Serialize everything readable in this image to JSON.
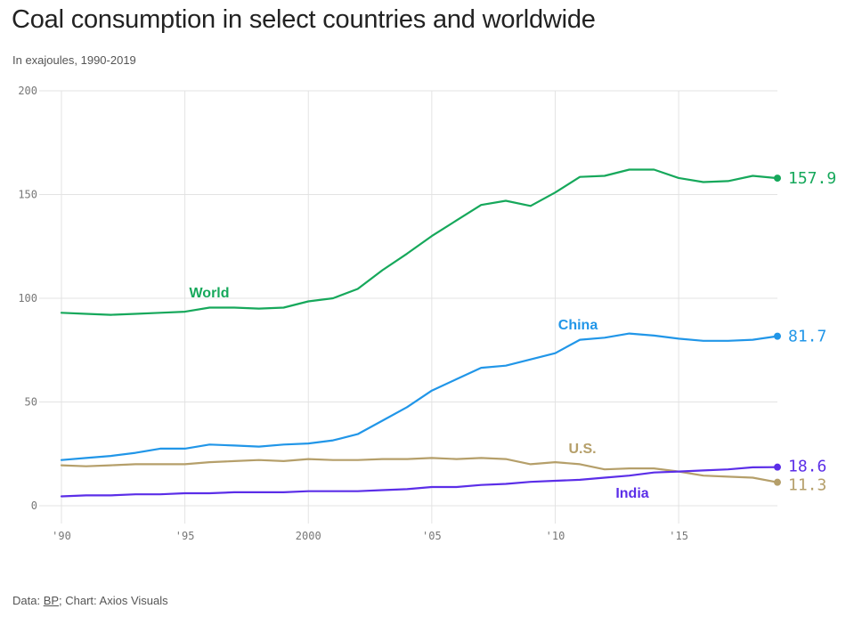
{
  "title": "Coal consumption in select countries and worldwide",
  "subtitle": "In exajoules, 1990-2019",
  "footer": {
    "prefix": "Data: ",
    "source": "BP",
    "suffix": "; Chart: Axios Visuals"
  },
  "chart_data": {
    "type": "line",
    "title": "Coal consumption in select countries and worldwide",
    "subtitle": "In exajoules, 1990-2019",
    "xlabel": "",
    "ylabel": "",
    "xlim": [
      1990,
      2019
    ],
    "ylim": [
      0,
      200
    ],
    "yticks": [
      0,
      50,
      100,
      150,
      200
    ],
    "xticks": [
      {
        "value": 1990,
        "label": "'90"
      },
      {
        "value": 1995,
        "label": "'95"
      },
      {
        "value": 2000,
        "label": "2000"
      },
      {
        "value": 2005,
        "label": "'05"
      },
      {
        "value": 2010,
        "label": "'10"
      },
      {
        "value": 2015,
        "label": "'15"
      }
    ],
    "grid": true,
    "x": [
      1990,
      1991,
      1992,
      1993,
      1994,
      1995,
      1996,
      1997,
      1998,
      1999,
      2000,
      2001,
      2002,
      2003,
      2004,
      2005,
      2006,
      2007,
      2008,
      2009,
      2010,
      2011,
      2012,
      2013,
      2014,
      2015,
      2016,
      2017,
      2018,
      2019
    ],
    "series": [
      {
        "name": "World",
        "color": "#16a85b",
        "end_label": "157.9",
        "values": [
          93,
          92.5,
          92,
          92.5,
          93,
          93.5,
          95.5,
          95.5,
          95,
          95.5,
          98.5,
          100,
          104.5,
          113.5,
          121.5,
          130,
          137.5,
          145,
          147,
          144.5,
          151,
          158.5,
          159,
          162,
          162,
          158,
          156,
          156.5,
          159,
          157.9
        ]
      },
      {
        "name": "China",
        "color": "#2196e8",
        "end_label": "81.7",
        "values": [
          22,
          23,
          24,
          25.5,
          27.5,
          27.5,
          29.5,
          29,
          28.5,
          29.5,
          30,
          31.5,
          34.5,
          41,
          47.5,
          55.5,
          61,
          66.5,
          67.5,
          70.5,
          73.5,
          80,
          81,
          83,
          82,
          80.5,
          79.5,
          79.5,
          80,
          81.7
        ]
      },
      {
        "name": "U.S.",
        "color": "#b59f6a",
        "end_label": "11.3",
        "values": [
          19.5,
          19,
          19.5,
          20,
          20,
          20,
          21,
          21.5,
          22,
          21.5,
          22.5,
          22,
          22,
          22.5,
          22.5,
          23,
          22.5,
          23,
          22.5,
          20,
          21,
          20,
          17.5,
          18,
          18,
          16.5,
          14.5,
          14,
          13.5,
          11.3
        ]
      },
      {
        "name": "India",
        "color": "#5b2ee8",
        "end_label": "18.6",
        "values": [
          4.5,
          5,
          5,
          5.5,
          5.5,
          6,
          6,
          6.5,
          6.5,
          6.5,
          7,
          7,
          7,
          7.5,
          8,
          9,
          9,
          10,
          10.5,
          11.5,
          12,
          12.5,
          13.5,
          14.5,
          16,
          16.5,
          17,
          17.5,
          18.5,
          18.6
        ]
      }
    ]
  }
}
